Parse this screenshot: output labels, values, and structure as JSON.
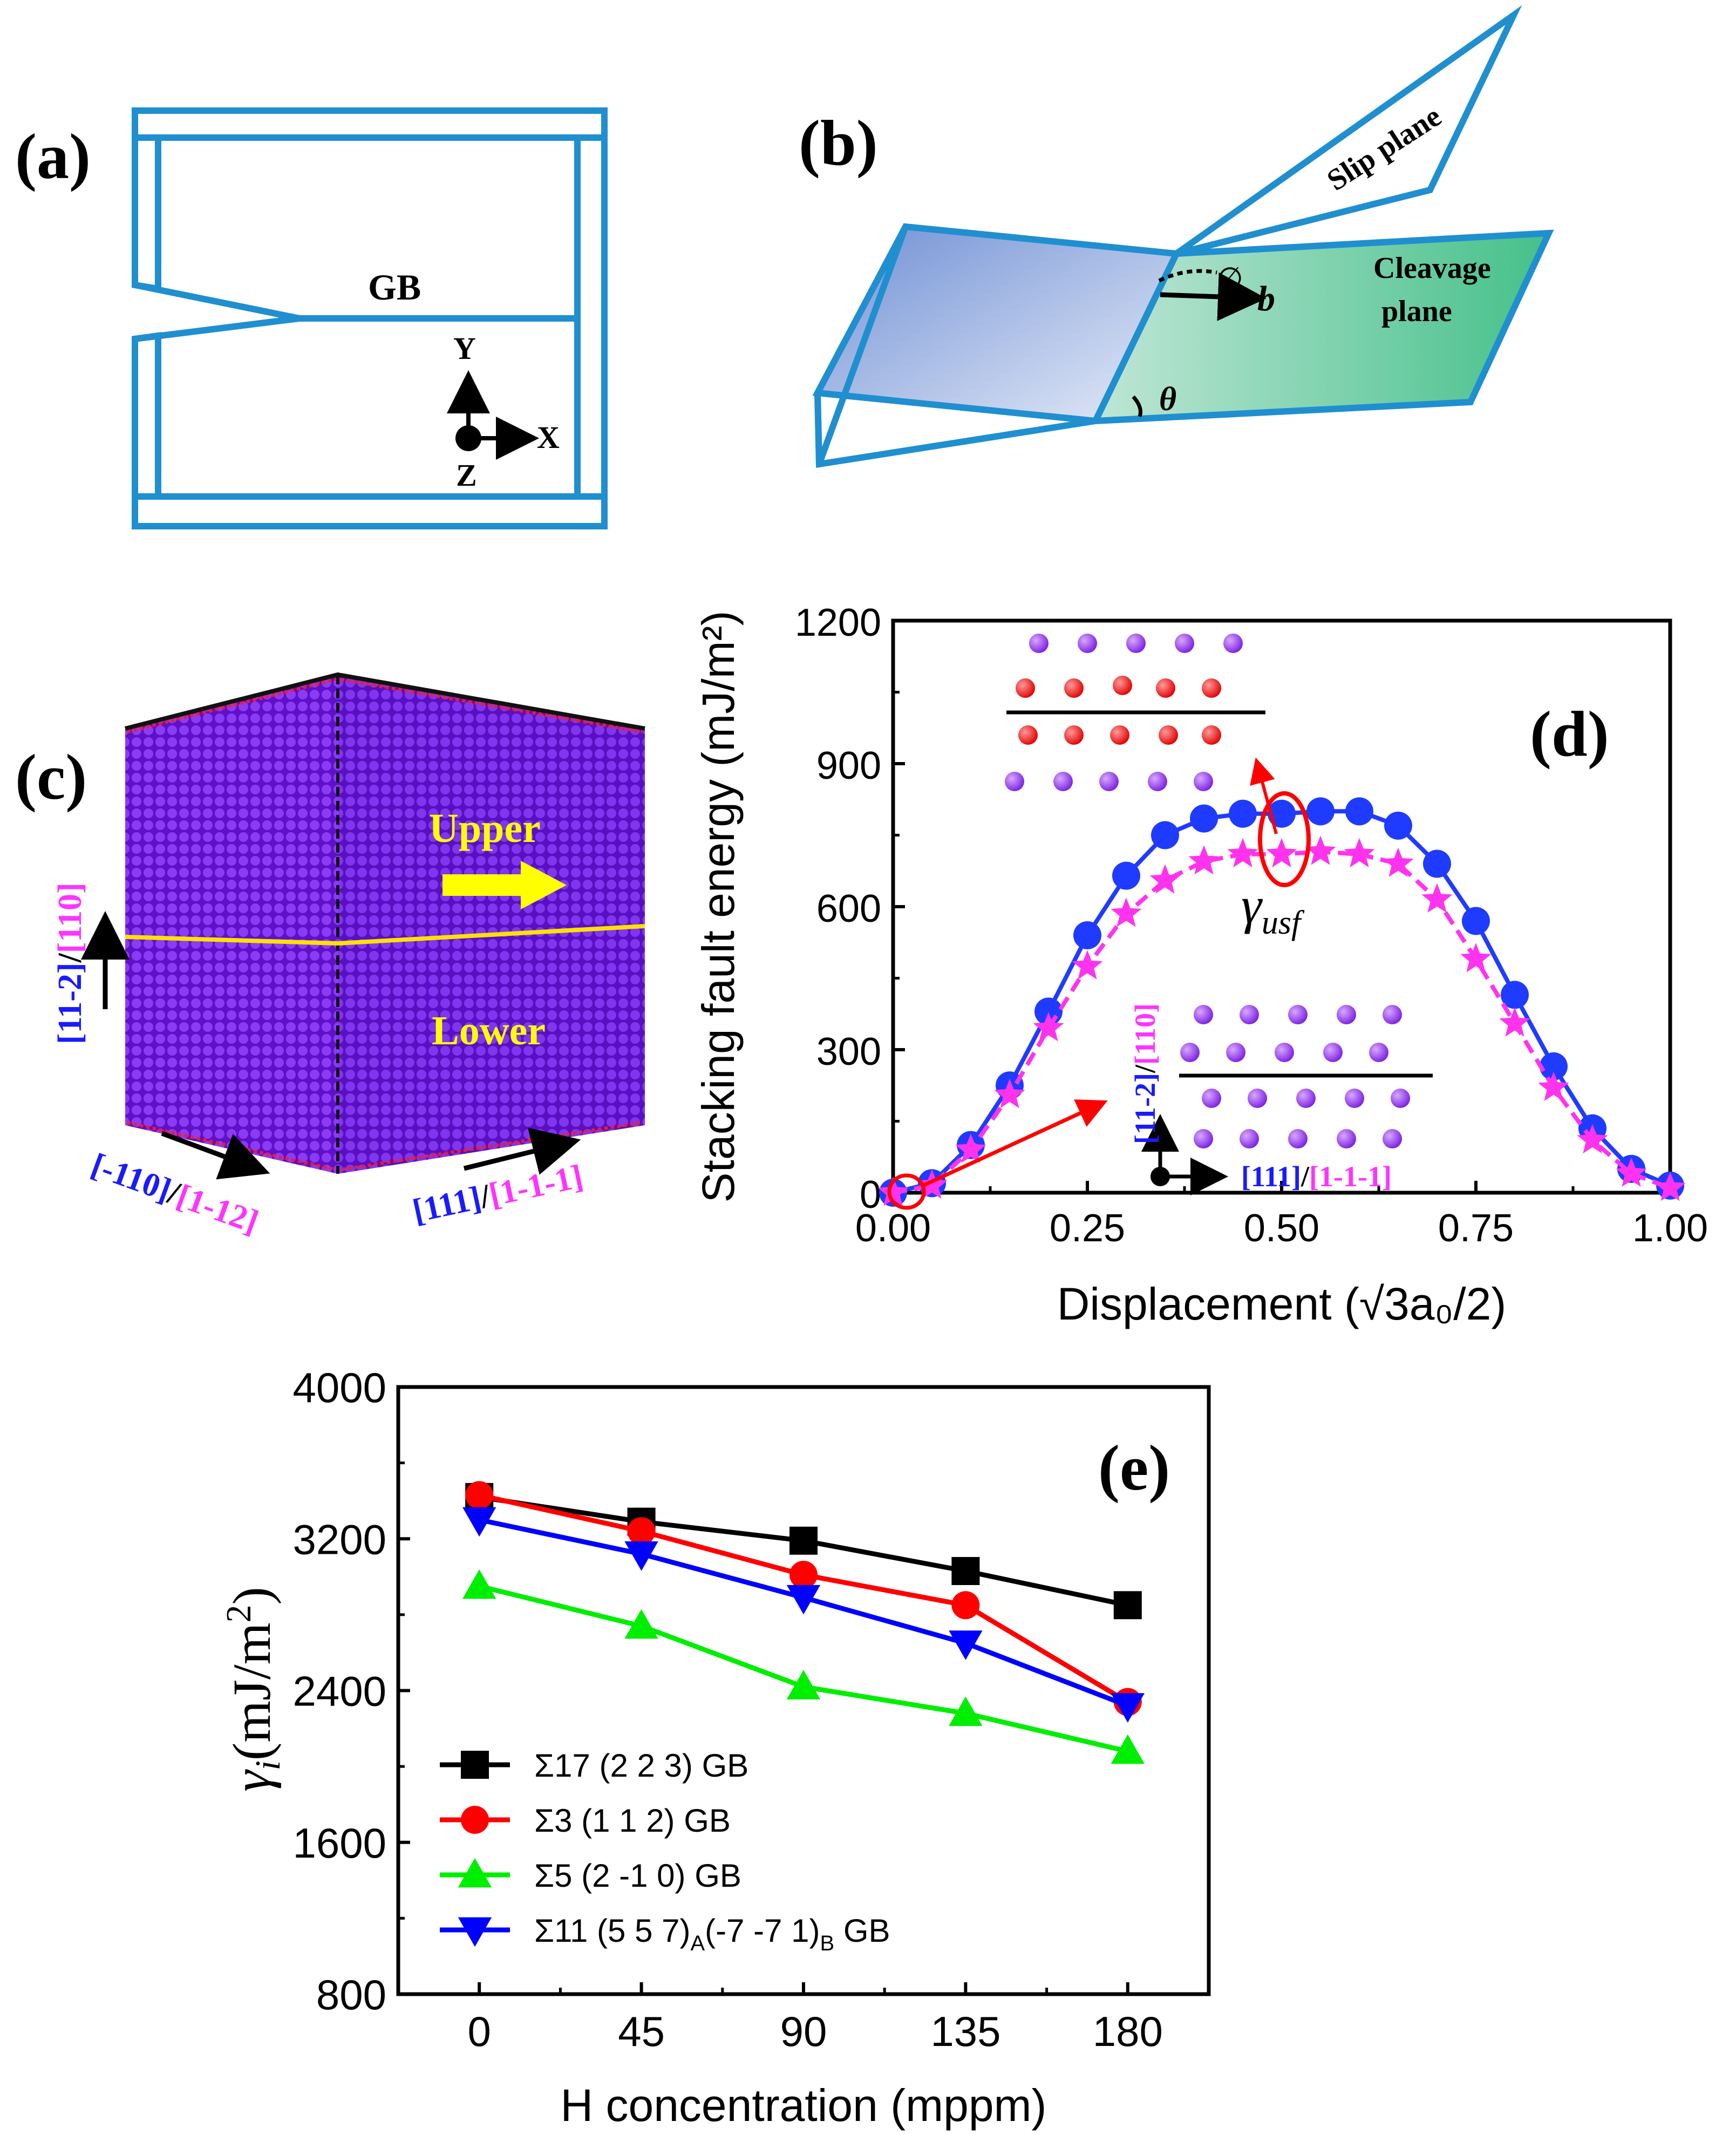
{
  "panel_a": {
    "label": "(a)",
    "gb_label": "GB",
    "axis_y": "Y",
    "axis_x": "X",
    "axis_z": "Z"
  },
  "panel_b": {
    "label": "(b)",
    "slip_plane": "Slip plane",
    "cleavage_line1": "Cleavage",
    "cleavage_line2": "plane",
    "phi_symbol": "∅",
    "b_symbol": "b",
    "theta_symbol": "θ"
  },
  "panel_c": {
    "label": "(c)",
    "upper": "Upper",
    "lower": "Lower",
    "vertical_dir_a": "[11-2]",
    "vertical_dir_b": "[110]",
    "left_dir_a": "[-110]",
    "left_dir_b": "[1-12]",
    "right_dir_a": "[111]",
    "right_dir_b": "[1-1-1]",
    "separator": "/",
    "colors": {
      "crystal": "#7a22ee",
      "upper_arrow": "#ffff00",
      "edge_atoms": "#ff1a1a",
      "dir_blue": "#1a1aff",
      "dir_magenta": "#ff33ff"
    }
  },
  "panel_d": {
    "label": "(d)",
    "gamma_usf": "γ",
    "gamma_usf_sub": "usf",
    "inset_dir_a": "[11-2]",
    "inset_dir_b": "[110]",
    "inset_dir_c": "[111]",
    "inset_dir_d": "[1-1-1]",
    "separator": "/"
  },
  "panel_e": {
    "label": "(e)"
  },
  "chart_data": [
    {
      "panel": "d",
      "type": "line",
      "title": "",
      "xlabel": "Displacement (√3a₀/2)",
      "ylabel": "Stacking fault energy (mJ/m²)",
      "xlim": [
        0,
        1
      ],
      "ylim": [
        0,
        1200
      ],
      "xticks": [
        "0.00",
        "0.25",
        "0.50",
        "0.75",
        "1.00"
      ],
      "yticks": [
        "0",
        "300",
        "600",
        "900",
        "1200"
      ],
      "x": [
        0,
        0.05,
        0.1,
        0.15,
        0.2,
        0.25,
        0.3,
        0.35,
        0.4,
        0.45,
        0.5,
        0.55,
        0.6,
        0.65,
        0.7,
        0.75,
        0.8,
        0.85,
        0.9,
        0.95,
        1.0
      ],
      "series": [
        {
          "name": "blue circles (solid)",
          "color": "#1f3bff",
          "marker": "circle",
          "values": [
            0,
            20,
            100,
            225,
            380,
            540,
            665,
            750,
            785,
            795,
            795,
            800,
            800,
            770,
            690,
            570,
            415,
            265,
            135,
            50,
            15
          ]
        },
        {
          "name": "magenta stars (dashed)",
          "color": "#ff33ee",
          "marker": "star",
          "values": [
            0,
            15,
            90,
            205,
            345,
            475,
            585,
            655,
            695,
            710,
            710,
            715,
            710,
            690,
            615,
            490,
            355,
            220,
            110,
            40,
            10
          ]
        }
      ]
    },
    {
      "panel": "e",
      "type": "line",
      "title": "",
      "xlabel": "H concentration (mppm)",
      "ylabel": "γ_i (mJ/m²)",
      "xlim": [
        -22.5,
        202.5
      ],
      "ylim": [
        800,
        4000
      ],
      "xticks": [
        "0",
        "45",
        "90",
        "135",
        "180"
      ],
      "yticks": [
        "800",
        "1600",
        "2400",
        "3200",
        "4000"
      ],
      "x": [
        0,
        45,
        90,
        135,
        180
      ],
      "legend_position": "lower-left",
      "series": [
        {
          "name": "Σ17 (2 2 3) GB",
          "color": "#000000",
          "marker": "square",
          "values": [
            3420,
            3290,
            3190,
            3030,
            2850
          ]
        },
        {
          "name": "Σ3 (1 1 2) GB",
          "color": "#ff0000",
          "marker": "circle",
          "values": [
            3430,
            3240,
            3010,
            2850,
            2340
          ]
        },
        {
          "name": "Σ5 (2 -1 0) GB",
          "color": "#00ee00",
          "marker": "triangle-up",
          "values": [
            2950,
            2740,
            2420,
            2280,
            2080
          ]
        },
        {
          "name": "Σ11 (5 5 7)A(-7 -7 1)B GB",
          "color": "#0000ff",
          "marker": "triangle-down",
          "values": [
            3300,
            3120,
            2890,
            2650,
            2320
          ]
        }
      ],
      "legend_labels": [
        {
          "main": "Σ17 (2 2 3) GB"
        },
        {
          "main": "Σ3 (1 1 2) GB"
        },
        {
          "main": "Σ5 (2 -1 0) GB"
        },
        {
          "pre": "Σ11 (5 5 7)",
          "sub1": "A",
          "mid": "(-7 -7 1)",
          "sub2": "B",
          "post": " GB"
        }
      ]
    }
  ]
}
